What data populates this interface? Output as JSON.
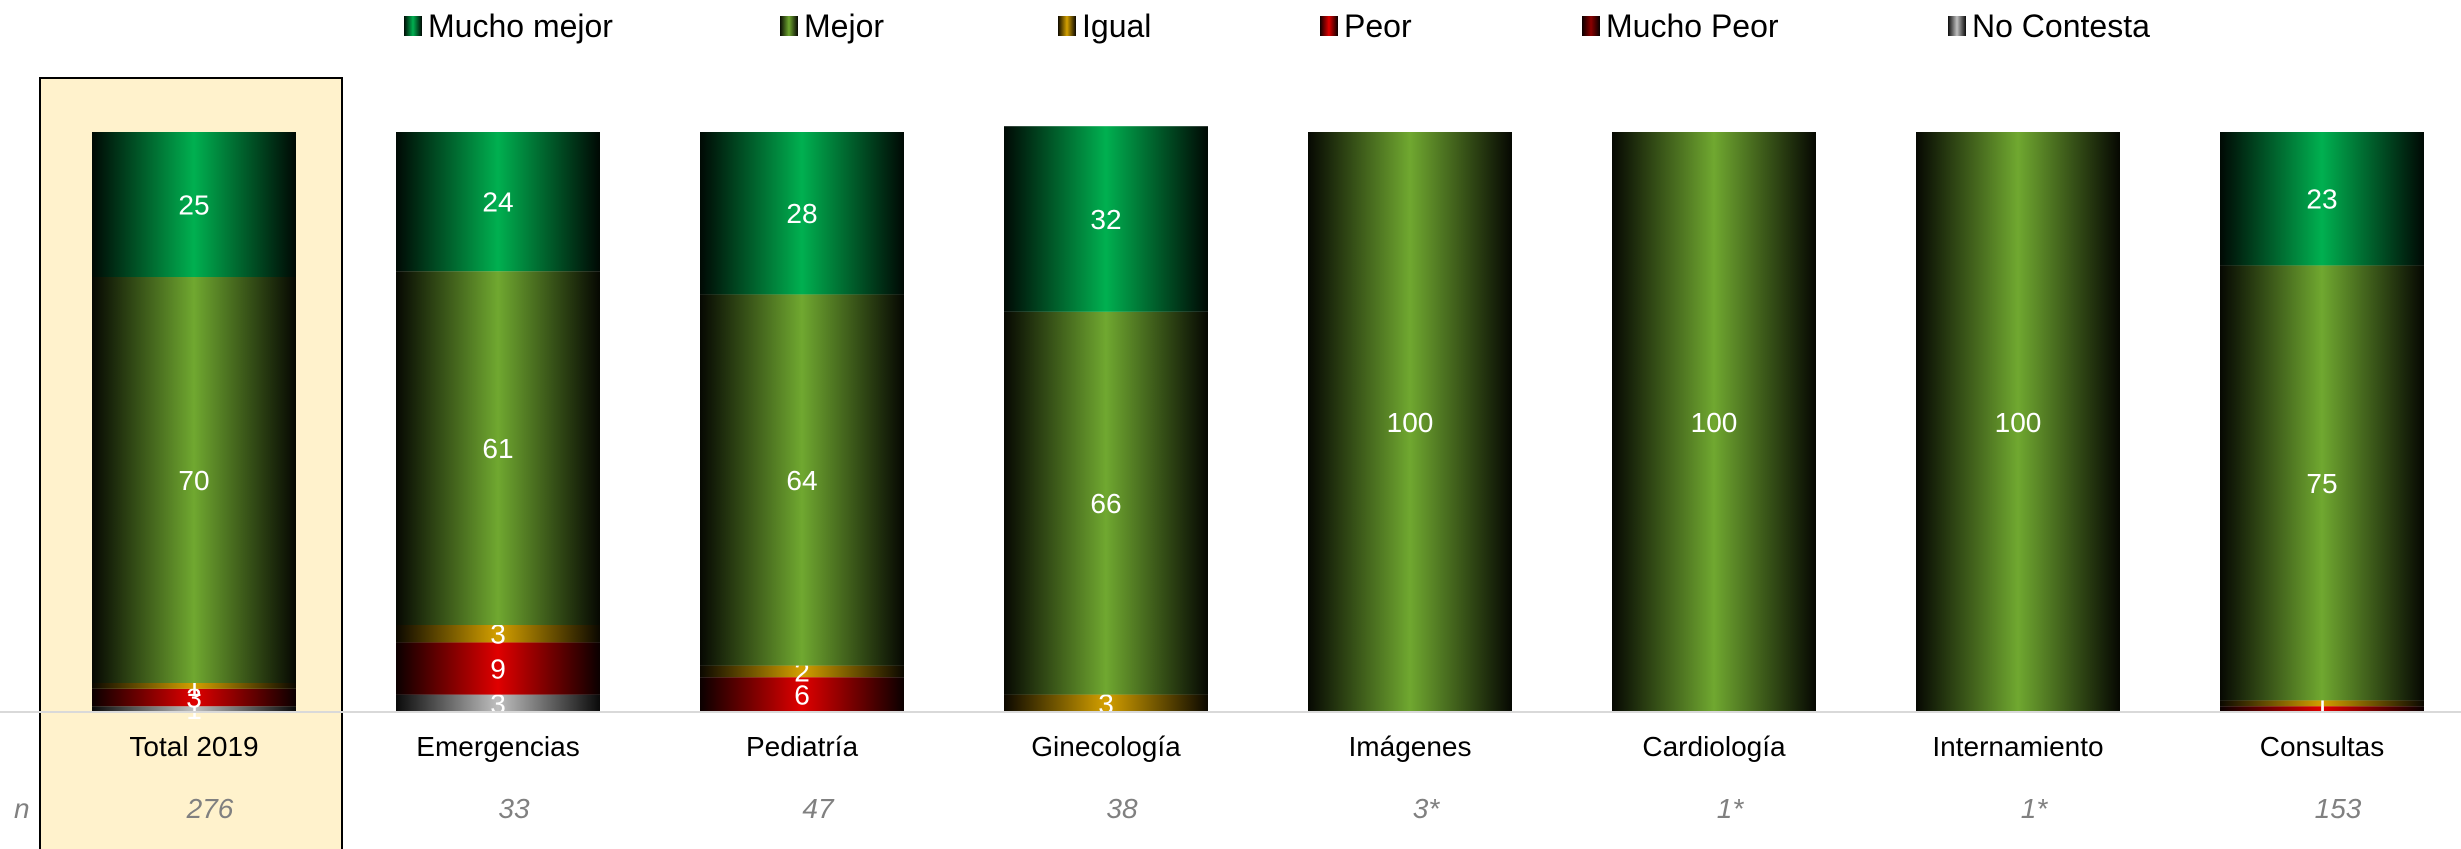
{
  "chart_data": {
    "type": "bar",
    "stacked": true,
    "percent": true,
    "categories": [
      "Total 2019",
      "Emergencias",
      "Pediatría",
      "Ginecología",
      "Imágenes",
      "Cardiología",
      "Internamiento",
      "Consultas"
    ],
    "highlighted_category": "Total 2019",
    "highlight_color": "#fff2cc",
    "n_label": "n",
    "n_values": [
      "276",
      "33",
      "47",
      "38",
      "3*",
      "1*",
      "1*",
      "153"
    ],
    "ylim": [
      0,
      100
    ],
    "grid": false,
    "legend_position": "top",
    "series": [
      {
        "name": "Mucho mejor",
        "color": "#00b050",
        "values": [
          25,
          24,
          28,
          32,
          0,
          0,
          0,
          23
        ],
        "labels": [
          "25",
          "24",
          "28",
          "32",
          "",
          "",
          "",
          "23"
        ]
      },
      {
        "name": "Mejor",
        "color": "#70a830",
        "values": [
          70,
          61,
          64,
          66,
          100,
          100,
          100,
          75
        ],
        "labels": [
          "70",
          "61",
          "64",
          "66",
          "100",
          "100",
          "100",
          "75"
        ]
      },
      {
        "name": "Igual",
        "color": "#d4a000",
        "values": [
          1,
          3,
          2,
          3,
          0,
          0,
          0,
          1
        ],
        "labels": [
          "1",
          "3",
          "2",
          "3",
          "",
          "",
          "",
          "1"
        ]
      },
      {
        "name": "Peor",
        "color": "#e00000",
        "values": [
          3,
          9,
          6,
          0,
          0,
          0,
          0,
          1
        ],
        "labels": [
          "3",
          "9",
          "6",
          "",
          "",
          "",
          "",
          "1"
        ]
      },
      {
        "name": "Mucho Peor",
        "color": "#8b0000",
        "values": [
          0,
          0,
          0,
          0,
          0,
          0,
          0,
          0
        ],
        "labels": [
          "",
          "",
          "",
          "",
          "",
          "",
          "",
          ""
        ]
      },
      {
        "name": "No Contesta",
        "color": "#bfbfbf",
        "values": [
          1,
          3,
          0,
          0,
          0,
          0,
          0,
          0
        ],
        "labels": [
          "1",
          "3",
          "",
          "",
          "",
          "",
          "",
          ""
        ]
      }
    ]
  }
}
